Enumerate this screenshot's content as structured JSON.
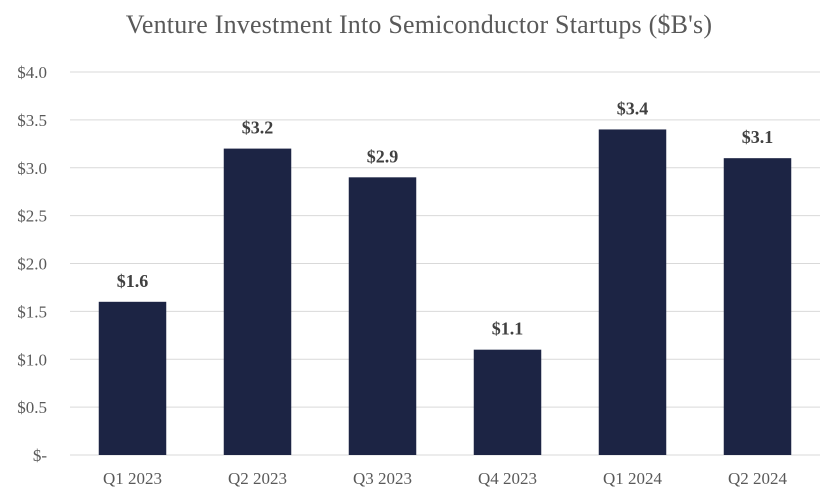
{
  "chart_data": {
    "type": "bar",
    "title": "Venture Investment Into Semiconductor Startups ($B's)",
    "categories": [
      "Q1 2023",
      "Q2 2023",
      "Q3 2023",
      "Q4 2023",
      "Q1 2024",
      "Q2 2024"
    ],
    "values": [
      1.6,
      3.2,
      2.9,
      1.1,
      3.4,
      3.1
    ],
    "data_labels": [
      "$1.6",
      "$3.2",
      "$2.9",
      "$1.1",
      "$3.4",
      "$3.1"
    ],
    "xlabel": "",
    "ylabel": "",
    "ylim": [
      0,
      4.0
    ],
    "yticks": [
      0,
      0.5,
      1.0,
      1.5,
      2.0,
      2.5,
      3.0,
      3.5,
      4.0
    ],
    "ytick_labels": [
      "$-",
      "$0.5",
      "$1.0",
      "$1.5",
      "$2.0",
      "$2.5",
      "$3.0",
      "$3.5",
      "$4.0"
    ],
    "grid": true,
    "legend": "none",
    "bar_color": "#1c2444",
    "grid_color": "#d9d9d9",
    "text_color": "#595959",
    "label_color": "#404040"
  }
}
